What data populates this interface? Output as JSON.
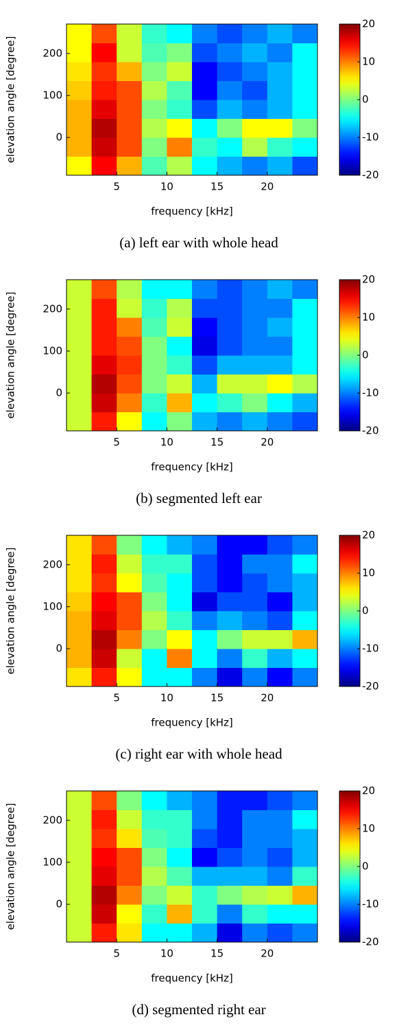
{
  "chart_data": [
    {
      "type": "heatmap",
      "title": "(a) left ear with whole head",
      "xlabel": "frequency [kHz]",
      "ylabel": "elevation angle [degree]",
      "x": [
        1.25,
        3.75,
        6.25,
        8.75,
        11.25,
        13.75,
        16.25,
        18.75,
        21.25,
        23.75
      ],
      "y": [
        -67.5,
        -22.5,
        22.5,
        67.5,
        112.5,
        157.5,
        202.5,
        247.5
      ],
      "values": [
        [
          5,
          15,
          8,
          -2,
          2,
          -5,
          -8,
          -10,
          -8,
          -12
        ],
        [
          8,
          17,
          12,
          0,
          10,
          -3,
          -5,
          2,
          -3,
          -5
        ],
        [
          8,
          18,
          12,
          2,
          5,
          -5,
          0,
          5,
          5,
          0
        ],
        [
          8,
          16,
          12,
          0,
          -3,
          -12,
          -8,
          -10,
          -8,
          -5
        ],
        [
          7,
          14,
          12,
          2,
          -2,
          -15,
          -10,
          -12,
          -8,
          -5
        ],
        [
          6,
          13,
          8,
          0,
          3,
          -15,
          -12,
          -10,
          -8,
          -5
        ],
        [
          5,
          15,
          3,
          -2,
          0,
          -12,
          -10,
          -8,
          -10,
          -5
        ],
        [
          5,
          12,
          3,
          -3,
          -5,
          -10,
          -12,
          -10,
          -8,
          -10
        ]
      ],
      "xlim": [
        0,
        25
      ],
      "ylim": [
        -90,
        270
      ],
      "xticks": [
        5,
        10,
        15,
        20
      ],
      "yticks": [
        0,
        100,
        200
      ],
      "clim": [
        -20,
        20
      ],
      "cticks": [
        -20,
        -10,
        0,
        10,
        20
      ],
      "colormap": "jet"
    },
    {
      "type": "heatmap",
      "title": "(b) segmented left ear",
      "xlabel": "frequency [kHz]",
      "ylabel": "elevation angle [degree]",
      "x": [
        1.25,
        3.75,
        6.25,
        8.75,
        11.25,
        13.75,
        16.25,
        18.75,
        21.25,
        23.75
      ],
      "y": [
        -67.5,
        -22.5,
        22.5,
        67.5,
        112.5,
        157.5,
        202.5,
        247.5
      ],
      "values": [
        [
          3,
          14,
          5,
          -5,
          0,
          -8,
          -10,
          -8,
          -10,
          -12
        ],
        [
          3,
          17,
          10,
          -3,
          8,
          -5,
          -3,
          0,
          -5,
          -8
        ],
        [
          3,
          18,
          12,
          0,
          3,
          -8,
          3,
          3,
          5,
          2
        ],
        [
          3,
          16,
          13,
          0,
          -3,
          -12,
          -8,
          -8,
          -8,
          -5
        ],
        [
          3,
          14,
          12,
          0,
          -5,
          -16,
          -12,
          -10,
          -10,
          -5
        ],
        [
          3,
          14,
          10,
          -2,
          3,
          -15,
          -12,
          -10,
          -8,
          -5
        ],
        [
          3,
          14,
          3,
          -3,
          2,
          -12,
          -12,
          -10,
          -10,
          -5
        ],
        [
          3,
          12,
          2,
          -5,
          -5,
          -10,
          -12,
          -10,
          -8,
          -10
        ]
      ],
      "xlim": [
        0,
        25
      ],
      "ylim": [
        -90,
        270
      ],
      "xticks": [
        5,
        10,
        15,
        20
      ],
      "yticks": [
        0,
        100,
        200
      ],
      "clim": [
        -20,
        20
      ],
      "cticks": [
        -20,
        -10,
        0,
        10,
        20
      ],
      "colormap": "jet"
    },
    {
      "type": "heatmap",
      "title": "(c) right ear with whole head",
      "xlabel": "frequency [kHz]",
      "ylabel": "elevation angle [degree]",
      "x": [
        1.25,
        3.75,
        6.25,
        8.75,
        11.25,
        13.75,
        16.25,
        18.75,
        21.25,
        23.75
      ],
      "y": [
        -67.5,
        -22.5,
        22.5,
        67.5,
        112.5,
        157.5,
        202.5,
        247.5
      ],
      "values": [
        [
          6,
          14,
          5,
          -5,
          -5,
          -10,
          -16,
          -10,
          -15,
          -10
        ],
        [
          8,
          17,
          3,
          -5,
          10,
          -5,
          -10,
          -3,
          -8,
          -5
        ],
        [
          8,
          18,
          10,
          0,
          5,
          -5,
          0,
          3,
          3,
          8
        ],
        [
          8,
          16,
          12,
          2,
          -3,
          -10,
          -8,
          -10,
          -12,
          -5
        ],
        [
          7,
          15,
          12,
          0,
          -5,
          -16,
          -12,
          -12,
          -15,
          -8
        ],
        [
          6,
          13,
          5,
          -2,
          -5,
          -12,
          -15,
          -12,
          -10,
          -8
        ],
        [
          6,
          14,
          3,
          -3,
          -3,
          -12,
          -15,
          -10,
          -10,
          -5
        ],
        [
          6,
          12,
          0,
          -5,
          -8,
          -10,
          -15,
          -15,
          -12,
          -10
        ]
      ],
      "xlim": [
        0,
        25
      ],
      "ylim": [
        -90,
        270
      ],
      "xticks": [
        5,
        10,
        15,
        20
      ],
      "yticks": [
        0,
        100,
        200
      ],
      "clim": [
        -20,
        20
      ],
      "cticks": [
        -20,
        -10,
        0,
        10,
        20
      ],
      "colormap": "jet"
    },
    {
      "type": "heatmap",
      "title": "(d) segmented right ear",
      "xlabel": "frequency [kHz]",
      "ylabel": "elevation angle [degree]",
      "x": [
        1.25,
        3.75,
        6.25,
        8.75,
        11.25,
        13.75,
        16.25,
        18.75,
        21.25,
        23.75
      ],
      "y": [
        -67.5,
        -22.5,
        22.5,
        67.5,
        112.5,
        157.5,
        202.5,
        247.5
      ],
      "values": [
        [
          3,
          14,
          6,
          -5,
          -5,
          -8,
          -16,
          -10,
          -12,
          -10
        ],
        [
          3,
          17,
          5,
          -3,
          8,
          -3,
          -10,
          -3,
          -5,
          -5
        ],
        [
          3,
          18,
          10,
          0,
          3,
          -3,
          0,
          2,
          3,
          8
        ],
        [
          3,
          16,
          12,
          2,
          -2,
          -8,
          -8,
          -8,
          -10,
          -3
        ],
        [
          3,
          15,
          12,
          0,
          -5,
          -15,
          -12,
          -10,
          -12,
          -8
        ],
        [
          3,
          13,
          6,
          -2,
          -3,
          -12,
          -14,
          -10,
          -10,
          -8
        ],
        [
          3,
          14,
          3,
          -3,
          -3,
          -10,
          -14,
          -10,
          -10,
          -5
        ],
        [
          3,
          12,
          0,
          -5,
          -8,
          -10,
          -14,
          -14,
          -12,
          -10
        ]
      ],
      "xlim": [
        0,
        25
      ],
      "ylim": [
        -90,
        270
      ],
      "xticks": [
        5,
        10,
        15,
        20
      ],
      "yticks": [
        0,
        100,
        200
      ],
      "clim": [
        -20,
        20
      ],
      "cticks": [
        -20,
        -10,
        0,
        10,
        20
      ],
      "colormap": "jet"
    }
  ]
}
